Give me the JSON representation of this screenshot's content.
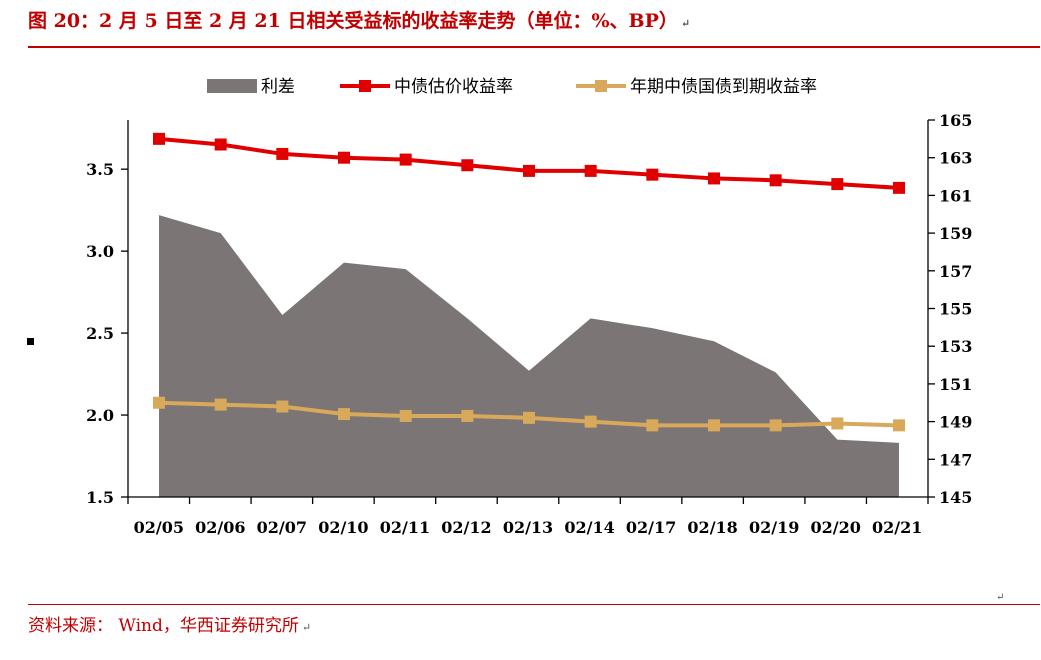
{
  "title": "图 20：2 月 5 日至 2 月 21 日相关受益标的收益率走势（单位：%、BP）",
  "source": "资料来源： Wind，华西证券研究所",
  "colors": {
    "accent": "#c00000",
    "area": "#7b7575",
    "line1": "#e00000",
    "line2": "#d8a95b"
  },
  "chart_data": {
    "type": "line",
    "categories": [
      "02/05",
      "02/06",
      "02/07",
      "02/10",
      "02/11",
      "02/12",
      "02/13",
      "02/14",
      "02/17",
      "02/18",
      "02/19",
      "02/20",
      "02/21"
    ],
    "series": [
      {
        "name": "利差",
        "type": "area",
        "axis": "left",
        "values": [
          3.22,
          3.11,
          2.61,
          2.93,
          2.89,
          2.59,
          2.27,
          2.59,
          2.53,
          2.45,
          2.26,
          1.85,
          1.83
        ]
      },
      {
        "name": "中债估价收益率",
        "type": "line",
        "axis": "right",
        "values": [
          164.0,
          163.7,
          163.2,
          163.0,
          162.9,
          162.6,
          162.3,
          162.3,
          162.1,
          161.9,
          161.8,
          161.6,
          161.4
        ]
      },
      {
        "name": "年期中债国债到期收益率",
        "type": "line",
        "axis": "right",
        "values": [
          150.0,
          149.9,
          149.8,
          149.4,
          149.3,
          149.3,
          149.2,
          149.0,
          148.8,
          148.8,
          148.8,
          148.9,
          148.8
        ]
      }
    ],
    "ylim_left": [
      1.5,
      3.8
    ],
    "yticks_left": [
      "1.5",
      "2.0",
      "2.5",
      "3.0",
      "3.5"
    ],
    "ylim_right": [
      145,
      165
    ],
    "yticks_right": [
      "145",
      "147",
      "149",
      "151",
      "153",
      "155",
      "157",
      "159",
      "161",
      "163",
      "165"
    ],
    "legend_position": "top",
    "grid": false
  }
}
